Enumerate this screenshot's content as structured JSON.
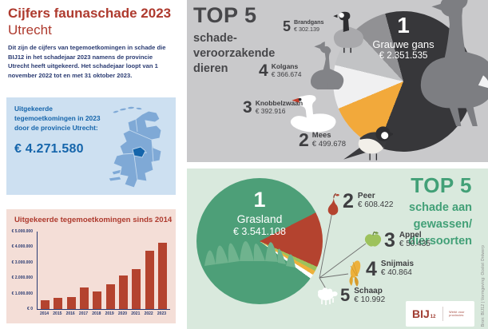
{
  "title": {
    "line1": "Cijfers faunaschade 2023",
    "line2": "Utrecht"
  },
  "intro": "Dit zijn de cijfers van tegemoetkomingen in schade die BIJ12 in het schadejaar 2023 namens de provincie Utrecht heeft uitgekeerd. Het schadejaar loopt van 1 november 2022 tot en met 31 oktober 2023.",
  "payout_box": {
    "heading": "Uitgekeerde tegemoetkomingen in 2023 door de provincie Utrecht:",
    "amount": "€ 4.271.580"
  },
  "bar_box": {
    "title": "Uitgekeerde tegemoetkomingen sinds 2014"
  },
  "top5_animals": {
    "title": "TOP 5",
    "subtitle_lines": [
      "schade-",
      "veroorzakende",
      "dieren"
    ],
    "items": [
      {
        "rank": "1",
        "name": "Grauwe gans",
        "amount": "€ 2.351.535"
      },
      {
        "rank": "2",
        "name": "Mees",
        "amount": "€ 499.678"
      },
      {
        "rank": "3",
        "name": "Knobbelzwaan",
        "amount": "€ 392.916"
      },
      {
        "rank": "4",
        "name": "Kolgans",
        "amount": "€ 366.674"
      },
      {
        "rank": "5",
        "name": "Brandgans",
        "amount": "€ 302.139"
      }
    ]
  },
  "top5_crops": {
    "title": "TOP 5",
    "subtitle_lines": [
      "schade aan",
      "gewassen/",
      "diersoorten"
    ],
    "items": [
      {
        "rank": "1",
        "name": "Grasland",
        "amount": "€ 3.541.108"
      },
      {
        "rank": "2",
        "name": "Peer",
        "amount": "€ 608.422"
      },
      {
        "rank": "3",
        "name": "Appel",
        "amount": "€ 50.435"
      },
      {
        "rank": "4",
        "name": "Snijmais",
        "amount": "€ 40.864"
      },
      {
        "rank": "5",
        "name": "Schaap",
        "amount": "€ 10.992"
      }
    ]
  },
  "footer": {
    "credit": "Bron: BIJ12  |  Vormgeving: Ocelot Ontwerp",
    "logo_main": "BIJ",
    "logo_num": "12",
    "tagline": "Werkt voor provincies"
  },
  "colors": {
    "title_red": "#ae3a2e",
    "navy": "#2a3b72",
    "blue": "#1565ab",
    "blue_box_bg": "#cde0f1",
    "pink_box_bg": "#f4ded7",
    "gray_panel_bg": "#c9c9cb",
    "green_panel_bg": "#d9e9dd",
    "green_accent": "#42a077"
  },
  "chart_data": [
    {
      "type": "bar",
      "title": "Uitgekeerde tegemoetkomingen sinds 2014",
      "categories": [
        "2014",
        "2015",
        "2016",
        "2017",
        "2018",
        "2019",
        "2020",
        "2021",
        "2022",
        "2023"
      ],
      "values": [
        580000,
        730000,
        790000,
        1390000,
        1130000,
        1600000,
        2180000,
        2590000,
        3790000,
        4271580
      ],
      "xlabel": "",
      "ylabel": "",
      "ylim": [
        0,
        5000000
      ],
      "ytick_labels": [
        "€ 0",
        "€ 1.000.000",
        "€ 2.000.000",
        "€ 3.000.000",
        "€ 4.000.000",
        "€ 5.000.000"
      ],
      "bar_color": "#b4432f",
      "grid": false,
      "legend": "none"
    },
    {
      "type": "pie",
      "title": "TOP 5 schadeveroorzakende dieren",
      "labels": [
        "Grauwe gans",
        "Mees",
        "Knobbelzwaan",
        "Kolgans",
        "Brandgans"
      ],
      "values": [
        2351535,
        499678,
        392916,
        366674,
        302139
      ],
      "colors": [
        "#37373a",
        "#f2a93b",
        "#f0f0f1",
        "#c2c3c5",
        "#919194"
      ],
      "legend": "callout-labels"
    },
    {
      "type": "pie",
      "title": "TOP 5 schade aan gewassen/diersoorten",
      "labels": [
        "Grasland",
        "Peer",
        "Appel",
        "Snijmais",
        "Schaap"
      ],
      "values": [
        3541108,
        608422,
        50435,
        40864,
        10992
      ],
      "colors": [
        "#4d9f78",
        "#b4432f",
        "#9dc25c",
        "#edb13c",
        "#ffffff"
      ],
      "legend": "callout-labels"
    }
  ]
}
